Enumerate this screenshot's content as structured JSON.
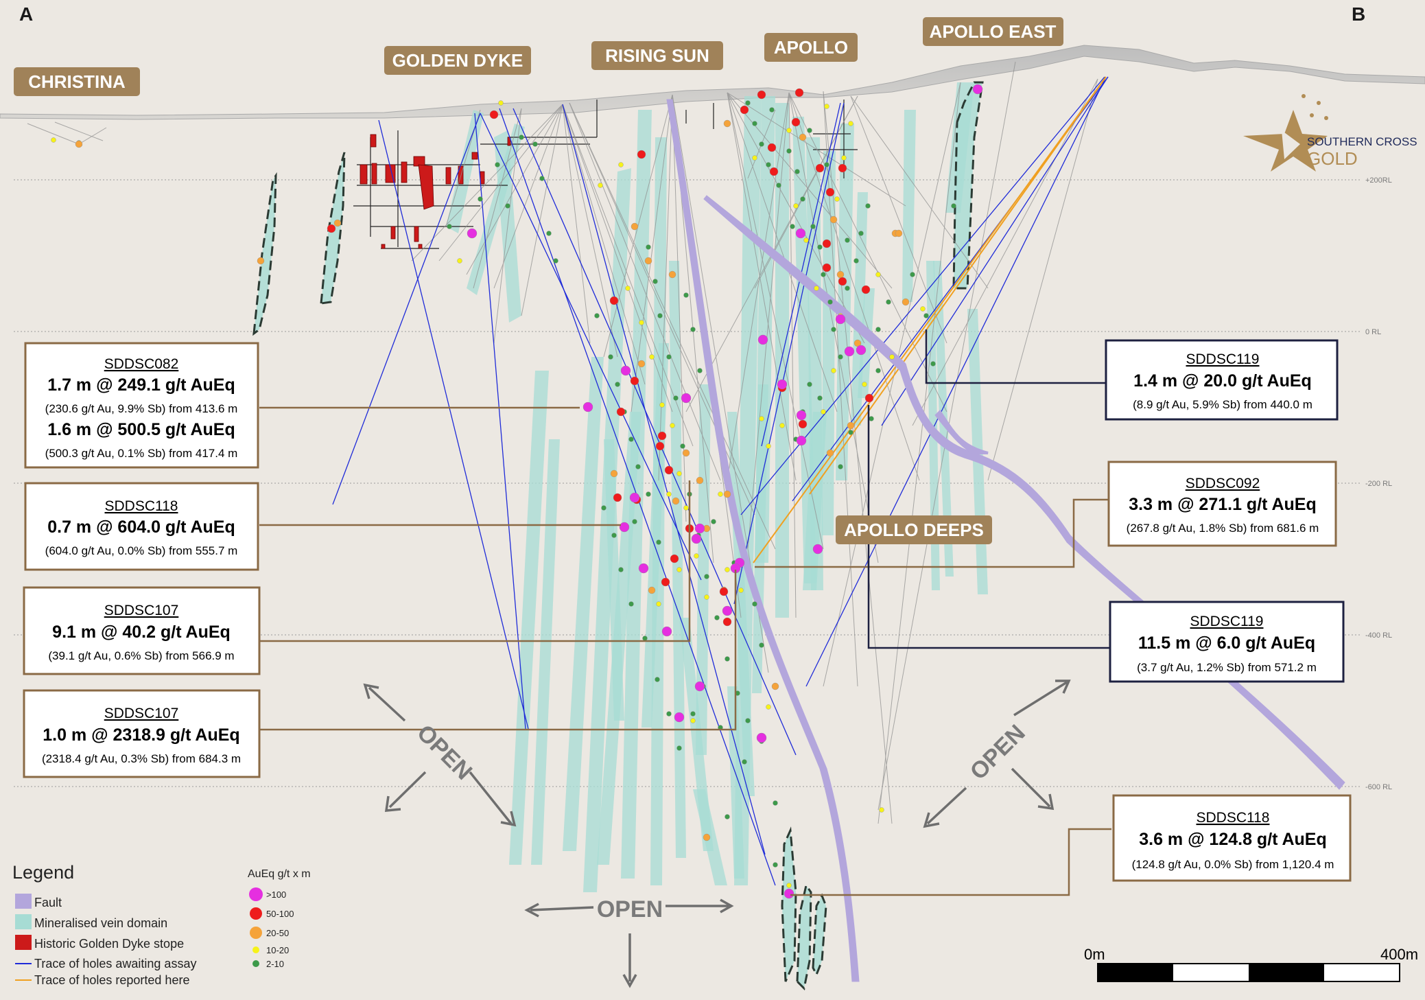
{
  "section_ends": {
    "left": "A",
    "right": "B"
  },
  "prospects": [
    "CHRISTINA",
    "GOLDEN DYKE",
    "RISING SUN",
    "APOLLO",
    "APOLLO EAST",
    "APOLLO DEEPS"
  ],
  "rl_labels": [
    "+200RL",
    "0 RL",
    "-200 RL",
    "-400 RL",
    "-600 RL"
  ],
  "logo": {
    "line1": "SOUTHERN CROSS",
    "line2": "GOLD"
  },
  "intercepts": [
    {
      "hole": "SDDSC082",
      "line1": "1.7 m @ 249.1 g/t AuEq",
      "detail1": "(230.6 g/t Au, 9.9% Sb) from 413.6 m",
      "line2": "1.6 m @ 500.5 g/t AuEq",
      "detail2": "(500.3 g/t Au, 0.1% Sb) from 417.4 m"
    },
    {
      "hole": "SDDSC118",
      "line1": "0.7 m @ 604.0 g/t AuEq",
      "detail1": "(604.0 g/t Au, 0.0% Sb) from 555.7 m"
    },
    {
      "hole": "SDDSC107",
      "line1": "9.1 m @ 40.2 g/t AuEq",
      "detail1": "(39.1 g/t Au, 0.6% Sb) from 566.9 m"
    },
    {
      "hole": "SDDSC107",
      "line1": "1.0 m @ 2318.9 g/t AuEq",
      "detail1": "(2318.4 g/t Au, 0.3% Sb) from 684.3 m"
    },
    {
      "hole": "SDDSC119",
      "line1": "1.4 m @ 20.0 g/t AuEq",
      "detail1": "(8.9 g/t Au, 5.9% Sb) from 440.0 m"
    },
    {
      "hole": "SDDSC092",
      "line1": "3.3 m @ 271.1 g/t AuEq",
      "detail1": "(267.8 g/t Au, 1.8% Sb) from 681.6 m"
    },
    {
      "hole": "SDDSC119",
      "line1": "11.5 m @ 6.0 g/t AuEq",
      "detail1": "(3.7 g/t Au, 1.2% Sb) from 571.2 m"
    },
    {
      "hole": "SDDSC118",
      "line1": "3.6 m @ 124.8 g/t AuEq",
      "detail1": "(124.8 g/t Au, 0.0% Sb) from 1,120.4 m"
    }
  ],
  "open_label": "OPEN",
  "legend": {
    "title": "Legend",
    "items": [
      {
        "label": "Fault",
        "color": "#b3a6dc"
      },
      {
        "label": "Mineralised vein domain",
        "color": "#a7dcd4"
      },
      {
        "label": "Historic Golden Dyke stope",
        "color": "#cc1a1a"
      },
      {
        "label": "Trace of holes awaiting assay",
        "color": "#1f2bd8"
      },
      {
        "label": "Trace of holes reported here",
        "color": "#f0a020"
      }
    ]
  },
  "grade_legend": {
    "title": "AuEq g/t x m",
    "classes": [
      {
        "label": ">100",
        "color": "#e52fe0"
      },
      {
        "label": "50-100",
        "color": "#ee1c1c"
      },
      {
        "label": "20-50",
        "color": "#f5a33a"
      },
      {
        "label": "10-20",
        "color": "#f6f21a"
      },
      {
        "label": "2-10",
        "color": "#3d9a4a"
      }
    ]
  },
  "scale_bar": {
    "start": "0m",
    "end": "400m"
  }
}
